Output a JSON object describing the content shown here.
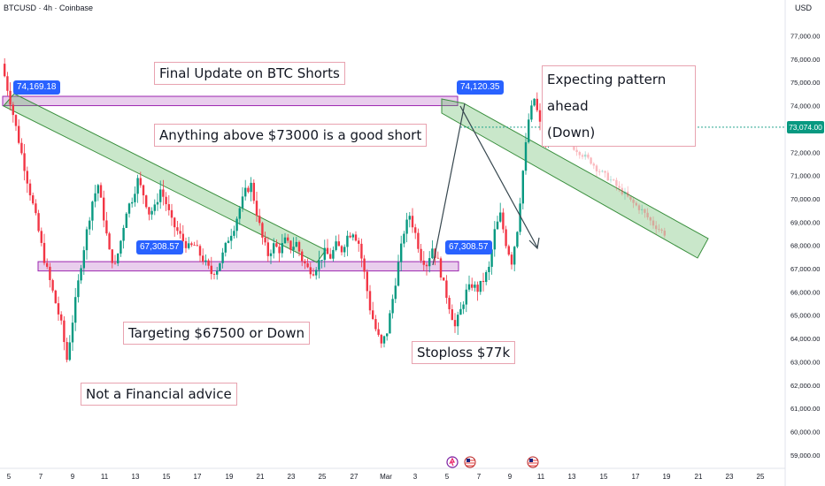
{
  "header": {
    "symbol_line": "BTCUSD · 4h · Coinbase",
    "currency": "USD"
  },
  "chart_data": {
    "type": "candlestick",
    "symbol": "BTCUSD",
    "interval": "4h",
    "exchange": "Coinbase",
    "ylim": [
      58500,
      77800
    ],
    "y_ticks": [
      59000,
      60000,
      61000,
      62000,
      63000,
      64000,
      65000,
      66000,
      67000,
      68000,
      69000,
      70000,
      71000,
      72000,
      73000,
      74000,
      75000,
      76000,
      77000
    ],
    "y_tick_labels": [
      "59,000.00",
      "60,000.00",
      "61,000.00",
      "62,000.00",
      "63,000.00",
      "64,000.00",
      "65,000.00",
      "66,000.00",
      "67,000.00",
      "68,000.00",
      "69,000.00",
      "70,000.00",
      "71,000.00",
      "72,000.00",
      "73,000.00",
      "74,000.00",
      "75,000.00",
      "76,000.00",
      "77,000.00"
    ],
    "x_tick_labels": [
      "5",
      "7",
      "9",
      "11",
      "13",
      "15",
      "17",
      "19",
      "21",
      "23",
      "25",
      "27",
      "Mar",
      "3",
      "5",
      "7",
      "9",
      "11",
      "13",
      "15",
      "17",
      "19",
      "21",
      "23",
      "25"
    ],
    "last_price": 73074,
    "last_price_label": "73,074.00",
    "price_path": [
      [
        0,
        75800
      ],
      [
        3,
        74200
      ],
      [
        6,
        72500
      ],
      [
        9,
        70800
      ],
      [
        12,
        69200
      ],
      [
        15,
        67400
      ],
      [
        18,
        66000
      ],
      [
        21,
        64600
      ],
      [
        23,
        63100
      ],
      [
        26,
        65600
      ],
      [
        28,
        67200
      ],
      [
        30,
        68600
      ],
      [
        32,
        69900
      ],
      [
        34,
        70600
      ],
      [
        36,
        69200
      ],
      [
        38,
        67700
      ],
      [
        40,
        67100
      ],
      [
        42,
        68200
      ],
      [
        44,
        69500
      ],
      [
        46,
        70000
      ],
      [
        48,
        70800
      ],
      [
        50,
        70200
      ],
      [
        52,
        69400
      ],
      [
        54,
        69600
      ],
      [
        56,
        70400
      ],
      [
        58,
        69800
      ],
      [
        60,
        69000
      ],
      [
        62,
        68600
      ],
      [
        64,
        68200
      ],
      [
        66,
        67900
      ],
      [
        68,
        68000
      ],
      [
        70,
        67600
      ],
      [
        72,
        67200
      ],
      [
        74,
        66800
      ],
      [
        76,
        67000
      ],
      [
        78,
        67600
      ],
      [
        80,
        68300
      ],
      [
        82,
        68800
      ],
      [
        84,
        69600
      ],
      [
        86,
        70300
      ],
      [
        88,
        70600
      ],
      [
        90,
        69400
      ],
      [
        92,
        68300
      ],
      [
        94,
        67600
      ],
      [
        96,
        68000
      ],
      [
        98,
        67800
      ],
      [
        100,
        68200
      ],
      [
        102,
        67900
      ],
      [
        104,
        68100
      ],
      [
        106,
        67400
      ],
      [
        108,
        67000
      ],
      [
        110,
        66900
      ],
      [
        112,
        67300
      ],
      [
        114,
        67700
      ],
      [
        116,
        67500
      ],
      [
        118,
        68000
      ],
      [
        120,
        67800
      ],
      [
        122,
        68400
      ],
      [
        124,
        68600
      ],
      [
        126,
        68100
      ],
      [
        128,
        66800
      ],
      [
        130,
        65300
      ],
      [
        132,
        64400
      ],
      [
        134,
        63700
      ],
      [
        136,
        64300
      ],
      [
        138,
        65700
      ],
      [
        140,
        67200
      ],
      [
        142,
        68600
      ],
      [
        144,
        69300
      ],
      [
        146,
        68500
      ],
      [
        148,
        67500
      ],
      [
        150,
        67200
      ],
      [
        152,
        67900
      ],
      [
        154,
        67300
      ],
      [
        156,
        66300
      ],
      [
        158,
        65400
      ],
      [
        160,
        64500
      ],
      [
        162,
        65200
      ],
      [
        164,
        66000
      ],
      [
        166,
        66300
      ],
      [
        168,
        66100
      ],
      [
        170,
        66500
      ],
      [
        172,
        67000
      ],
      [
        174,
        68600
      ],
      [
        176,
        69300
      ],
      [
        178,
        68100
      ],
      [
        180,
        67300
      ],
      [
        182,
        68700
      ],
      [
        184,
        71200
      ],
      [
        186,
        73400
      ],
      [
        188,
        74300
      ],
      [
        190,
        73200
      ],
      [
        192,
        72400
      ],
      [
        194,
        73300
      ],
      [
        196,
        74000
      ],
      [
        198,
        73000
      ],
      [
        200,
        72700
      ],
      [
        202,
        72200
      ],
      [
        204,
        72000
      ],
      [
        206,
        71800
      ],
      [
        208,
        71600
      ],
      [
        210,
        71300
      ],
      [
        212,
        71100
      ],
      [
        214,
        70900
      ],
      [
        216,
        70700
      ],
      [
        218,
        70400
      ],
      [
        220,
        70200
      ],
      [
        222,
        69900
      ],
      [
        224,
        69700
      ],
      [
        226,
        69500
      ],
      [
        228,
        69200
      ],
      [
        230,
        68900
      ],
      [
        232,
        68700
      ],
      [
        234,
        68500
      ]
    ],
    "horizontal_zones": [
      {
        "label": "74,169.18",
        "from": 74000,
        "to": 74400
      },
      {
        "label": "67,308.57",
        "from": 66900,
        "to": 67300
      }
    ],
    "price_labels": [
      "74,169.18",
      "74,120.35",
      "67,308.57",
      "67,308.57"
    ],
    "annotations": [
      "Final Update on BTC Shorts",
      "Anything above $73000 is a good short",
      "Targeting $67500 or Down",
      "Not a Financial advice",
      "Stoploss $77k",
      "Expecting pattern ahead",
      "(Down)"
    ]
  },
  "colors": {
    "up": "#089981",
    "down": "#f23645",
    "zone": "#e1bee7",
    "zone_border": "#9c27b0",
    "channel": "#4caf50",
    "tag": "#2962ff"
  }
}
